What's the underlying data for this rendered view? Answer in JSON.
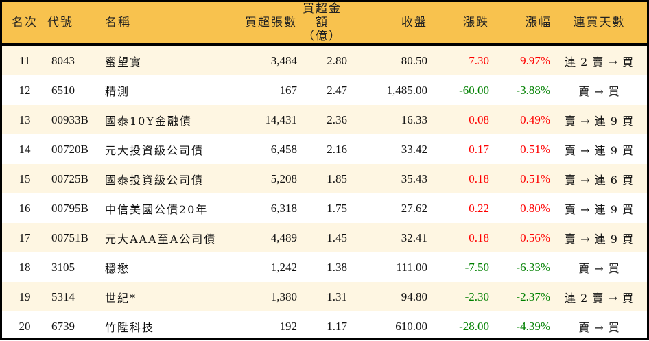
{
  "colors": {
    "header_bg": "#F8C24E",
    "row_alt_bg": "#FEF6E2",
    "up": "#FF0000",
    "down": "#008000"
  },
  "headers": [
    "名次",
    "代號",
    "名稱",
    "買超張數",
    "買超金額\n（億）",
    "收盤",
    "漲跌",
    "漲幅",
    "連買天數"
  ],
  "rows": [
    {
      "rank": "11",
      "code": "8043",
      "name": "蜜望實",
      "shares": "3,484",
      "amount": "2.80",
      "close": "80.50",
      "change": "7.30",
      "pct": "9.97%",
      "days": "連 2 賣 → 買",
      "dir": "up"
    },
    {
      "rank": "12",
      "code": "6510",
      "name": "精測",
      "shares": "167",
      "amount": "2.47",
      "close": "1,485.00",
      "change": "-60.00",
      "pct": "-3.88%",
      "days": "賣 → 買",
      "dir": "down"
    },
    {
      "rank": "13",
      "code": "00933B",
      "name": "國泰10Y金融債",
      "shares": "14,431",
      "amount": "2.36",
      "close": "16.33",
      "change": "0.08",
      "pct": "0.49%",
      "days": "賣 → 連 9 買",
      "dir": "up"
    },
    {
      "rank": "14",
      "code": "00720B",
      "name": "元大投資級公司債",
      "shares": "6,458",
      "amount": "2.16",
      "close": "33.42",
      "change": "0.17",
      "pct": "0.51%",
      "days": "賣 → 連 9 買",
      "dir": "up"
    },
    {
      "rank": "15",
      "code": "00725B",
      "name": "國泰投資級公司債",
      "shares": "5,208",
      "amount": "1.85",
      "close": "35.43",
      "change": "0.18",
      "pct": "0.51%",
      "days": "賣 → 連 6 買",
      "dir": "up"
    },
    {
      "rank": "16",
      "code": "00795B",
      "name": "中信美國公債20年",
      "shares": "6,318",
      "amount": "1.75",
      "close": "27.62",
      "change": "0.22",
      "pct": "0.80%",
      "days": "賣 → 連 9 買",
      "dir": "up"
    },
    {
      "rank": "17",
      "code": "00751B",
      "name": "元大AAA至A公司債",
      "shares": "4,489",
      "amount": "1.45",
      "close": "32.41",
      "change": "0.18",
      "pct": "0.56%",
      "days": "賣 → 連 9 買",
      "dir": "up"
    },
    {
      "rank": "18",
      "code": "3105",
      "name": "穩懋",
      "shares": "1,242",
      "amount": "1.38",
      "close": "111.00",
      "change": "-7.50",
      "pct": "-6.33%",
      "days": "賣 → 買",
      "dir": "down"
    },
    {
      "rank": "19",
      "code": "5314",
      "name": "世紀*",
      "shares": "1,380",
      "amount": "1.31",
      "close": "94.80",
      "change": "-2.30",
      "pct": "-2.37%",
      "days": "連 2 賣 → 買",
      "dir": "down"
    },
    {
      "rank": "20",
      "code": "6739",
      "name": "竹陞科技",
      "shares": "192",
      "amount": "1.17",
      "close": "610.00",
      "change": "-28.00",
      "pct": "-4.39%",
      "days": "賣 → 買",
      "dir": "down"
    }
  ]
}
